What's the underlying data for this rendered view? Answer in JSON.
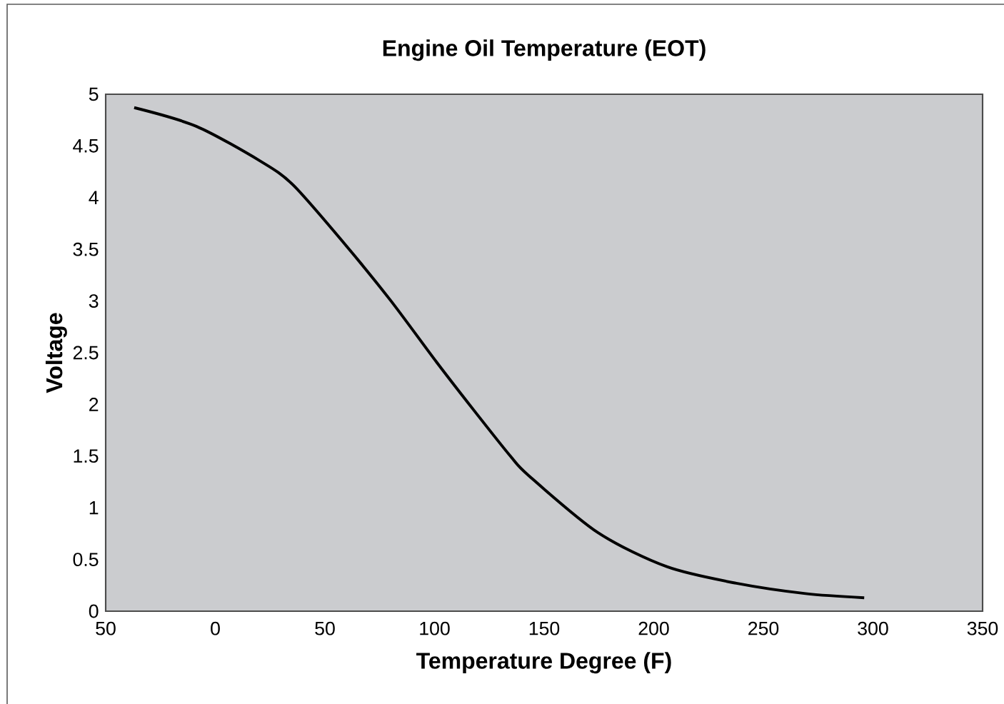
{
  "chart_data": {
    "type": "line",
    "title": "Engine Oil Temperature (EOT)",
    "xlabel": "Temperature Degree (F)",
    "ylabel": "Voltage",
    "x": [
      -37,
      -8.7,
      20.8,
      35.6,
      58.7,
      79.8,
      100.9,
      117.7,
      134.6,
      143,
      174.5,
      206,
      237.7,
      269.3,
      296
    ],
    "series": [
      {
        "color": "#000000",
        "values": [
          4.87,
          4.69,
          4.35,
          4.12,
          3.56,
          3.01,
          2.41,
          1.95,
          1.5,
          1.31,
          0.76,
          0.43,
          0.27,
          0.17,
          0.13
        ]
      }
    ],
    "xlim": [
      -50,
      350
    ],
    "xticks": [
      {
        "value": -50,
        "label": "50"
      },
      0,
      50,
      100,
      150,
      200,
      250,
      300,
      350
    ],
    "ylim": [
      0,
      5
    ],
    "yticks": [
      0,
      0.5,
      1,
      1.5,
      2,
      2.5,
      3,
      3.5,
      4,
      4.5,
      5
    ],
    "grid": false,
    "marker": "none",
    "line_style": "solid"
  }
}
